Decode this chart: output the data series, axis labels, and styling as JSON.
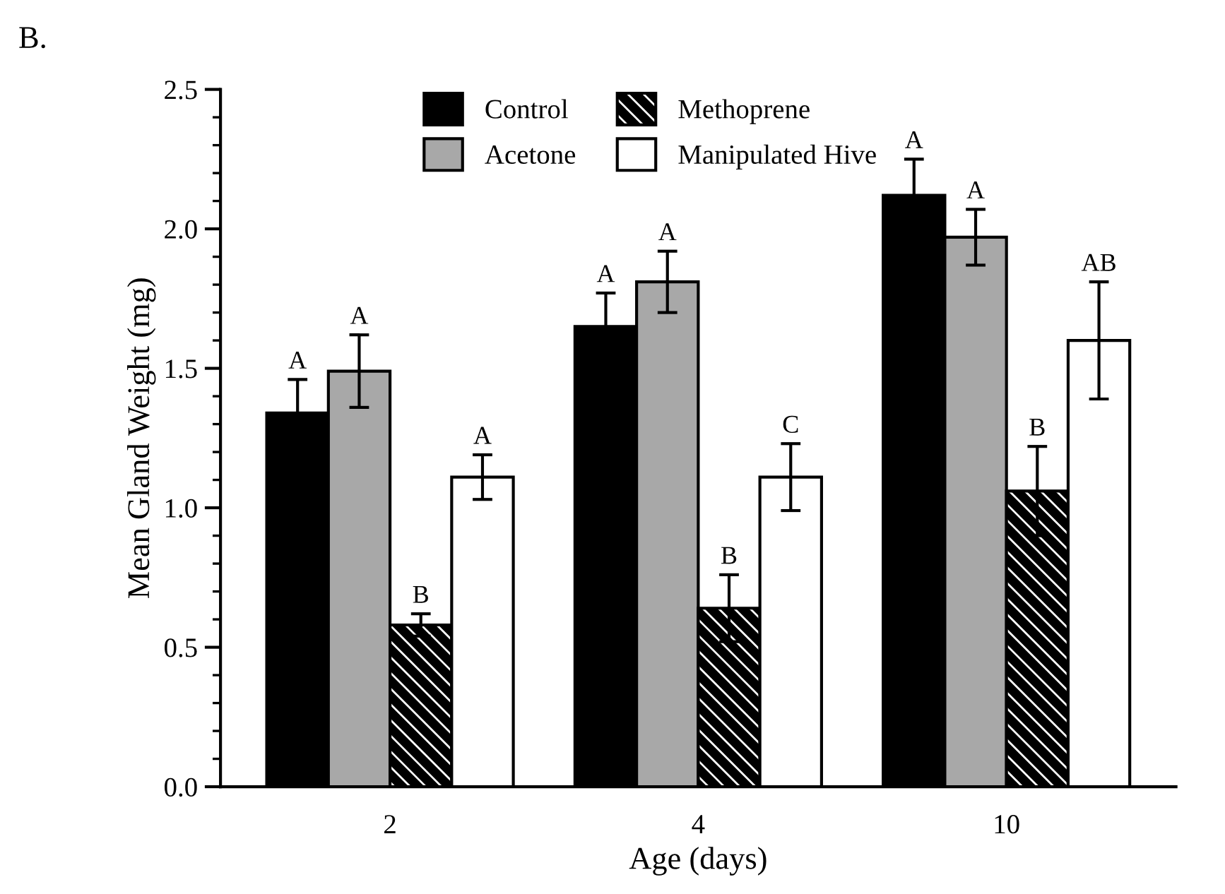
{
  "chart_data": {
    "type": "bar",
    "xlabel": "Age (days)",
    "ylabel": "Mean Gland Weight (mg)",
    "annotations": [
      "B."
    ],
    "categories": [
      "2",
      "4",
      "10"
    ],
    "series": [
      {
        "name": "Control",
        "color": "#000000",
        "values": [
          1.34,
          1.65,
          2.12
        ],
        "errors": [
          0.12,
          0.12,
          0.13
        ],
        "value_labels": [
          "A",
          "A",
          "A"
        ]
      },
      {
        "name": "Acetone",
        "color": "#a8a8a8",
        "values": [
          1.49,
          1.81,
          1.97
        ],
        "errors": [
          0.13,
          0.11,
          0.1
        ],
        "value_labels": [
          "A",
          "A",
          "A"
        ]
      },
      {
        "name": "Methoprene",
        "color": "#000000",
        "values": [
          0.58,
          0.64,
          1.06
        ],
        "errors": [
          0.04,
          0.12,
          0.16
        ],
        "value_labels": [
          "B",
          "B",
          "B"
        ]
      },
      {
        "name": "Manipulated Hive",
        "color": "#ffffff",
        "values": [
          1.11,
          1.11,
          1.6
        ],
        "errors": [
          0.08,
          0.12,
          0.21
        ],
        "value_labels": [
          "A",
          "C",
          "AB"
        ]
      }
    ],
    "ylim": [
      0,
      2.5
    ],
    "yticks": [
      {
        "value": 0,
        "label": "0.0"
      },
      0.5,
      {
        "value": 1,
        "label": "1.0"
      },
      1.5,
      {
        "value": 2,
        "label": "2.0"
      },
      2.5
    ],
    "grid": false,
    "legend": "top"
  }
}
